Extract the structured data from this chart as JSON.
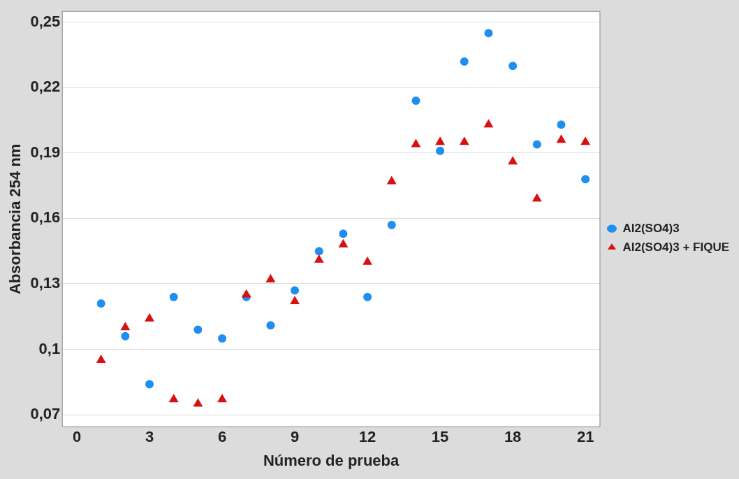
{
  "chart_data": {
    "type": "scatter",
    "xlabel": "Número de prueba",
    "ylabel": "Absorbancia 254 nm",
    "x": [
      1,
      2,
      3,
      4,
      5,
      6,
      7,
      8,
      9,
      10,
      11,
      12,
      13,
      14,
      15,
      16,
      17,
      18,
      19,
      20,
      21
    ],
    "series": [
      {
        "name": "Al2(SO4)3",
        "color": "#1e8ff0",
        "marker": "circle",
        "values": [
          0.121,
          0.106,
          0.084,
          0.124,
          0.109,
          0.105,
          0.124,
          0.111,
          0.127,
          0.145,
          0.153,
          0.124,
          0.157,
          0.214,
          0.191,
          0.232,
          0.245,
          0.23,
          0.194,
          0.203,
          0.178
        ]
      },
      {
        "name": "Al2(SO4)3 + FIQUE",
        "color": "#d91010",
        "marker": "triangle",
        "values": [
          0.095,
          0.11,
          0.114,
          0.077,
          0.075,
          0.077,
          0.125,
          0.132,
          0.122,
          0.141,
          0.148,
          0.14,
          0.177,
          0.194,
          0.195,
          0.195,
          0.203,
          0.186,
          0.169,
          0.196,
          0.195
        ]
      }
    ],
    "xlim": [
      -0.6,
      21.6
    ],
    "xticks": [
      0,
      3,
      6,
      9,
      12,
      15,
      18,
      21
    ],
    "ylim": [
      0.0645,
      0.255
    ],
    "yticks": [
      {
        "value": 0.07,
        "label": "0,07"
      },
      {
        "value": 0.1,
        "label": "0,1"
      },
      {
        "value": 0.13,
        "label": "0,13"
      },
      {
        "value": 0.16,
        "label": "0,16"
      },
      {
        "value": 0.19,
        "label": "0,19"
      },
      {
        "value": 0.22,
        "label": "0,22"
      },
      {
        "value": 0.25,
        "label": "0,25"
      }
    ],
    "grid": "y",
    "legend": "right"
  }
}
